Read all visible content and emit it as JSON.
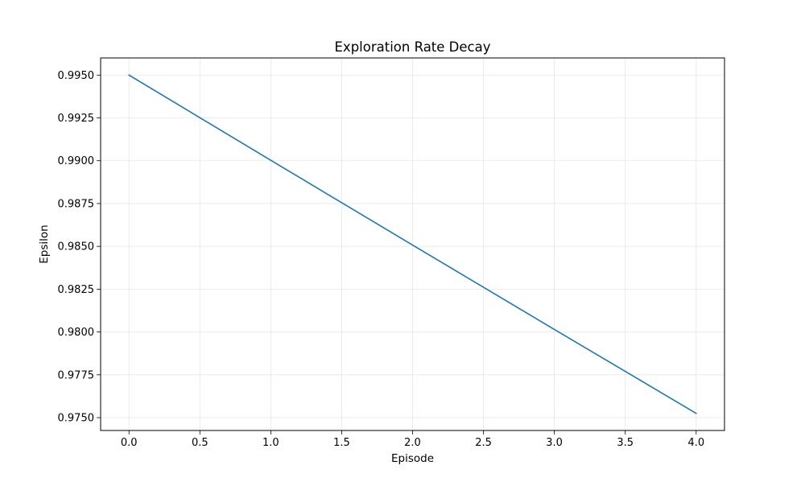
{
  "chart_data": {
    "type": "line",
    "title": "Exploration Rate Decay",
    "xlabel": "Episode",
    "ylabel": "Epsilon",
    "x": [
      0,
      1,
      2,
      3,
      4
    ],
    "series": [
      {
        "values": [
          0.995,
          0.990025,
          0.985075,
          0.98015,
          0.975249
        ],
        "color": "#1f77b4"
      }
    ],
    "xlim": [
      -0.2,
      4.2
    ],
    "ylim": [
      0.97425,
      0.996
    ],
    "xticks": [
      "0.0",
      "0.5",
      "1.0",
      "1.5",
      "2.0",
      "2.5",
      "3.0",
      "3.5",
      "4.0"
    ],
    "yticks": [
      "0.9750",
      "0.9775",
      "0.9800",
      "0.9825",
      "0.9850",
      "0.9875",
      "0.9900",
      "0.9925",
      "0.9950"
    ],
    "grid": true,
    "legend": "none"
  }
}
